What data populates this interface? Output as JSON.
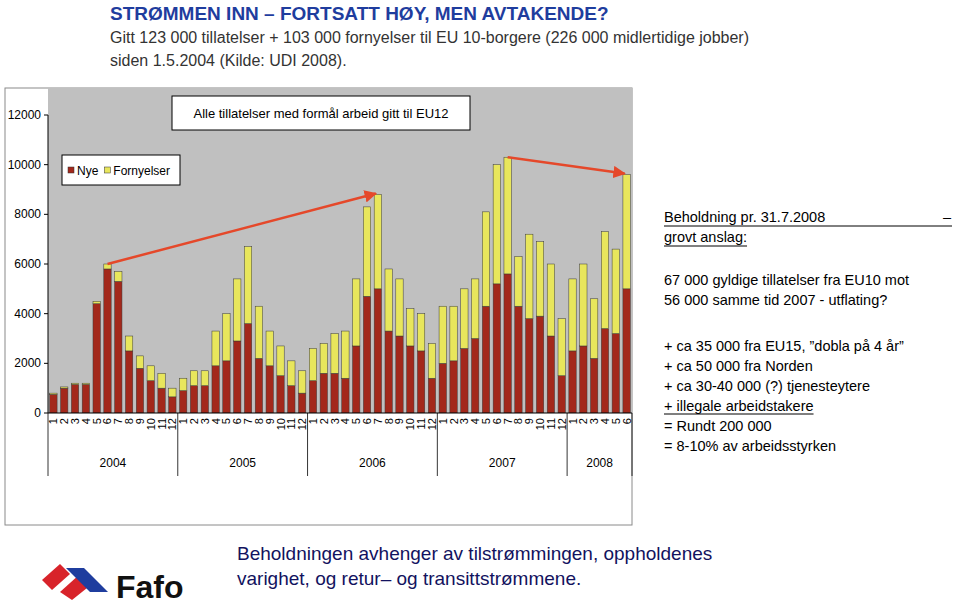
{
  "header": {
    "title": "STRØMMEN INN – FORTSATT HØY, MEN AVTAKENDE?",
    "subtitle": [
      "Gitt 123 000 tillatelser + 103 000 fornyelser  til EU 10-borgere (226 000 midlertidige jobber)",
      "siden 1.5.2004   (Kilde: UDI 2008)."
    ]
  },
  "chart_data": {
    "type": "bar",
    "title": "Alle tillatelser med formål arbeid gitt til EU12",
    "categories": [
      "1",
      "2",
      "3",
      "4",
      "5",
      "6",
      "7",
      "8",
      "9",
      "10",
      "11",
      "12",
      "1",
      "2",
      "3",
      "4",
      "5",
      "6",
      "7",
      "8",
      "9",
      "10",
      "11",
      "12",
      "1",
      "2",
      "3",
      "4",
      "5",
      "6",
      "7",
      "8",
      "9",
      "10",
      "11",
      "12",
      "1",
      "2",
      "3",
      "4",
      "5",
      "6",
      "7",
      "8",
      "9",
      "10",
      "11",
      "12",
      "1",
      "2",
      "3",
      "4",
      "5",
      "6"
    ],
    "x_groups": [
      {
        "label": "2004",
        "size": 12
      },
      {
        "label": "2005",
        "size": 12
      },
      {
        "label": "2006",
        "size": 12
      },
      {
        "label": "2007",
        "size": 12
      },
      {
        "label": "2008",
        "size": 6
      }
    ],
    "series": [
      {
        "name": "Nye",
        "color": "#a3281b",
        "values": [
          750,
          1000,
          1150,
          1150,
          4400,
          5800,
          5300,
          2500,
          1800,
          1300,
          1000,
          650,
          900,
          1100,
          1100,
          1900,
          2100,
          2900,
          3600,
          2200,
          1900,
          1500,
          1100,
          800,
          1300,
          1600,
          1600,
          1400,
          2700,
          4700,
          5000,
          3300,
          3100,
          2700,
          2500,
          1400,
          2000,
          2100,
          2600,
          3000,
          4300,
          5200,
          5600,
          4300,
          3800,
          3900,
          3100,
          1500,
          2500,
          2700,
          2200,
          3400,
          3200,
          5000
        ]
      },
      {
        "name": "Fornyelser",
        "color": "#e8e65c",
        "values": [
          50,
          50,
          50,
          50,
          100,
          200,
          400,
          600,
          500,
          600,
          600,
          350,
          500,
          600,
          600,
          1400,
          1900,
          2500,
          3100,
          2100,
          1400,
          1200,
          1000,
          900,
          1300,
          1200,
          1600,
          1900,
          2700,
          3600,
          3800,
          2500,
          2300,
          1500,
          1500,
          1400,
          2300,
          2200,
          2400,
          2400,
          3800,
          4800,
          4700,
          2000,
          3400,
          3000,
          2900,
          2300,
          2900,
          3300,
          2400,
          3900,
          3400,
          4600
        ]
      }
    ],
    "stacked": true,
    "grid": false,
    "legend": "top-left",
    "ylim": [
      0,
      12000
    ],
    "yticks": [
      0,
      2000,
      4000,
      6000,
      8000,
      10000,
      12000
    ]
  },
  "notes": {
    "heading": "Beholdning  pr. 31.7.2008",
    "dash": "–",
    "subheading": "grovt anslag:",
    "lines": [
      "67 000 gyldige tillatelser fra EU10 mot",
      "56 000 samme tid 2007 - utflating?"
    ],
    "list": [
      "+ ca 35 000 fra EU15, ”dobla på 4 år”",
      "+ ca 50 000 fra Norden",
      "+ ca 30-40 000 (?) tjenesteytere",
      "+ illegale arbeidstakere",
      "= Rundt 200 000",
      "= 8-10% av arbeidsstyrken"
    ]
  },
  "footer": {
    "logo": "Fafo",
    "text": [
      "Beholdningen avhenger av tilstrømmingen, oppholdenes",
      "varighet, og retur– og transittstrømmene."
    ]
  }
}
